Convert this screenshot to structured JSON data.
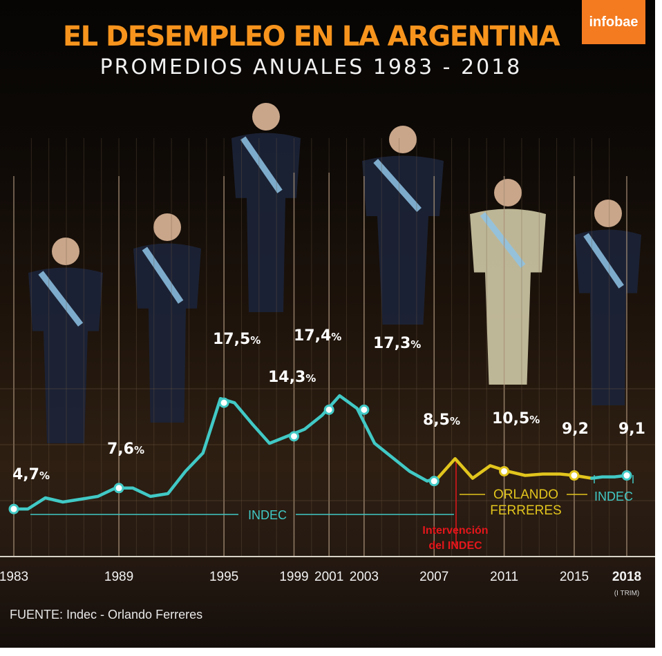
{
  "brand": {
    "logo_text": "infobae"
  },
  "header": {
    "title": "EL DESEMPLEO EN LA ARGENTINA",
    "subtitle": "PROMEDIOS ANUALES 1983 - 2018"
  },
  "footer": {
    "source": "FUENTE: Indec - Orlando Ferreres"
  },
  "colors": {
    "indec": "#41c9c6",
    "ferreres": "#e2c51d",
    "intervention": "#e4161b",
    "title": "#f7941d"
  },
  "chart_data": {
    "type": "line",
    "title": "EL DESEMPLEO EN LA ARGENTINA",
    "subtitle": "PROMEDIOS ANUALES 1983 - 2018",
    "xlabel": "",
    "ylabel": "",
    "xlim": [
      1983,
      2018
    ],
    "ylim": [
      0,
      20
    ],
    "grid": true,
    "x_ticks": [
      {
        "x": 1983,
        "label": "1983"
      },
      {
        "x": 1989,
        "label": "1989"
      },
      {
        "x": 1995,
        "label": "1995"
      },
      {
        "x": 1999,
        "label": "1999"
      },
      {
        "x": 2001,
        "label": "2001"
      },
      {
        "x": 2003,
        "label": "2003"
      },
      {
        "x": 2007,
        "label": "2007"
      },
      {
        "x": 2011,
        "label": "2011"
      },
      {
        "x": 2015,
        "label": "2015"
      },
      {
        "x": 2018,
        "label": "2018",
        "sublabel": "(I TRIM)",
        "bold": true
      }
    ],
    "series": [
      {
        "name": "INDEC",
        "color": "#41c9c6",
        "x": [
          1983,
          1983.8,
          1984.8,
          1985.8,
          1986.8,
          1987.8,
          1988.8,
          1989.8,
          1990.8,
          1991.8,
          1992.8,
          1993.8,
          1994.8,
          1995.6,
          1996.6,
          1997.6,
          1998.6,
          1999.6,
          2000.6,
          2001.6,
          2002.6,
          2003.6,
          2004.6,
          2005.6,
          2006.6,
          2007.2
        ],
        "values": [
          3.4,
          3.4,
          4.2,
          3.9,
          4.1,
          4.3,
          4.9,
          4.9,
          4.3,
          4.5,
          6.1,
          7.4,
          11.3,
          11.0,
          9.5,
          8.1,
          8.6,
          9.1,
          10.1,
          11.5,
          10.6,
          8.1,
          7.1,
          6.1,
          5.4,
          5.6
        ]
      },
      {
        "name": "ORLANDO FERRERES",
        "color": "#e2c51d",
        "x": [
          2007.2,
          2008.2,
          2009.2,
          2010.2,
          2011.2,
          2012.2,
          2013.2,
          2014.2,
          2015.0,
          2016.0
        ],
        "values": [
          5.6,
          7.0,
          5.6,
          6.5,
          6.1,
          5.8,
          5.9,
          5.9,
          5.8,
          5.6
        ]
      },
      {
        "name": "INDEC",
        "color": "#41c9c6",
        "x": [
          2016.0,
          2016.6,
          2017.3,
          2018
        ],
        "values": [
          5.6,
          5.7,
          5.7,
          5.8
        ]
      }
    ],
    "data_labels": [
      {
        "x": 1983,
        "y": 3.4,
        "num": "4,7",
        "pct": "%",
        "color": "#41c9c6"
      },
      {
        "x": 1989,
        "y": 4.9,
        "num": "7,6",
        "pct": "%",
        "color": "#41c9c6"
      },
      {
        "x": 1995,
        "y": 11.0,
        "num": "17,5",
        "pct": "%",
        "color": "#41c9c6"
      },
      {
        "x": 1999,
        "y": 8.6,
        "num": "14,3",
        "pct": "%",
        "color": "#41c9c6"
      },
      {
        "x": 2001,
        "y": 10.5,
        "num": "17,4",
        "pct": "%",
        "color": "#41c9c6"
      },
      {
        "x": 2003,
        "y": 10.5,
        "num": "17,3",
        "pct": "%",
        "color": "#41c9c6"
      },
      {
        "x": 2007,
        "y": 5.4,
        "num": "8,5",
        "pct": "%",
        "color": "#41c9c6"
      },
      {
        "x": 2011,
        "y": 6.1,
        "num": "10,5",
        "pct": "%",
        "color": "#e2c51d"
      },
      {
        "x": 2015,
        "y": 5.8,
        "num": "9,2",
        "pct": "",
        "color": "#e2c51d"
      },
      {
        "x": 2018,
        "y": 5.8,
        "num": "9,1",
        "pct": "",
        "color": "#41c9c6"
      }
    ],
    "annotations": {
      "indec_early": "INDEC",
      "ferreres_line1": "ORLANDO",
      "ferreres_line2": "FERRERES",
      "indec_late": "INDEC",
      "intervention_line1": "Intervención",
      "intervention_line2": "del INDEC"
    }
  }
}
